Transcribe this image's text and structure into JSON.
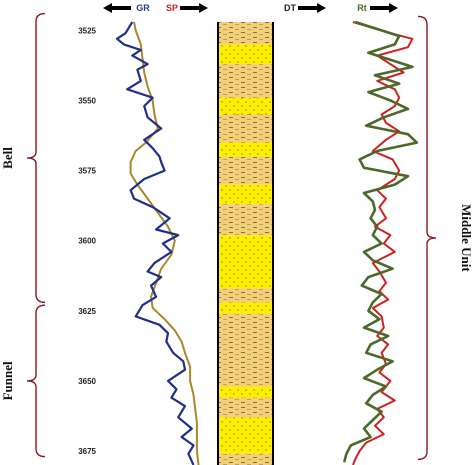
{
  "chart_data": {
    "type": "line",
    "y_axis": {
      "ticks": [
        3525,
        3550,
        3575,
        3600,
        3625,
        3650,
        3675
      ],
      "range": [
        3522,
        3680
      ],
      "reversed": true
    },
    "track_headers": [
      {
        "label": "GR",
        "color": "#2b3a8f",
        "arrow": "left"
      },
      {
        "label": "SP",
        "color": "#cc2222",
        "arrow": "right"
      },
      {
        "label": "DT",
        "color": "#222222",
        "arrow": "right"
      },
      {
        "label": "Rt",
        "color": "#4a6a2a",
        "arrow": "right"
      }
    ],
    "left_annotations": [
      {
        "label": "Bell",
        "range": [
          3519,
          3622
        ]
      },
      {
        "label": "Funnel",
        "range": [
          3623,
          3677
        ]
      }
    ],
    "right_annotations": [
      {
        "label": "Middle Unit",
        "range": [
          3520,
          3678
        ]
      }
    ],
    "lithology": [
      {
        "top": 3522,
        "base": 3530,
        "type": "shale"
      },
      {
        "top": 3530,
        "base": 3537,
        "type": "sand"
      },
      {
        "top": 3537,
        "base": 3549,
        "type": "shale"
      },
      {
        "top": 3549,
        "base": 3555,
        "type": "sand"
      },
      {
        "top": 3555,
        "base": 3565,
        "type": "shale"
      },
      {
        "top": 3565,
        "base": 3570,
        "type": "sand"
      },
      {
        "top": 3570,
        "base": 3580,
        "type": "shale"
      },
      {
        "top": 3580,
        "base": 3587,
        "type": "sand"
      },
      {
        "top": 3587,
        "base": 3598,
        "type": "shale"
      },
      {
        "top": 3598,
        "base": 3617,
        "type": "sand"
      },
      {
        "top": 3617,
        "base": 3622,
        "type": "shale"
      },
      {
        "top": 3622,
        "base": 3626,
        "type": "sand"
      },
      {
        "top": 3626,
        "base": 3652,
        "type": "shale"
      },
      {
        "top": 3652,
        "base": 3656,
        "type": "sand"
      },
      {
        "top": 3656,
        "base": 3663,
        "type": "shale"
      },
      {
        "top": 3663,
        "base": 3676,
        "type": "sand"
      },
      {
        "top": 3676,
        "base": 3680,
        "type": "shale"
      }
    ],
    "curve_scale": [
      0,
      100
    ],
    "series": [
      {
        "name": "GR",
        "color": "#1f2f8a",
        "points": [
          [
            3522,
            19
          ],
          [
            3526,
            15
          ],
          [
            3528,
            10
          ],
          [
            3530,
            14
          ],
          [
            3532,
            24
          ],
          [
            3534,
            19
          ],
          [
            3537,
            28
          ],
          [
            3539,
            22
          ],
          [
            3543,
            24
          ],
          [
            3546,
            16
          ],
          [
            3549,
            31
          ],
          [
            3552,
            26
          ],
          [
            3556,
            28
          ],
          [
            3560,
            36
          ],
          [
            3564,
            26
          ],
          [
            3567,
            31
          ],
          [
            3570,
            35
          ],
          [
            3572,
            36
          ],
          [
            3575,
            38
          ],
          [
            3578,
            26
          ],
          [
            3582,
            18
          ],
          [
            3585,
            20
          ],
          [
            3588,
            31
          ],
          [
            3592,
            41
          ],
          [
            3596,
            33
          ],
          [
            3598,
            46
          ],
          [
            3601,
            37
          ],
          [
            3604,
            42
          ],
          [
            3608,
            32
          ],
          [
            3611,
            28
          ],
          [
            3613,
            36
          ],
          [
            3616,
            30
          ],
          [
            3620,
            33
          ],
          [
            3623,
            25
          ],
          [
            3627,
            21
          ],
          [
            3630,
            35
          ],
          [
            3633,
            40
          ],
          [
            3636,
            39
          ],
          [
            3640,
            43
          ],
          [
            3643,
            49
          ],
          [
            3646,
            50
          ],
          [
            3650,
            40
          ],
          [
            3653,
            45
          ],
          [
            3656,
            42
          ],
          [
            3659,
            50
          ],
          [
            3663,
            46
          ],
          [
            3667,
            54
          ],
          [
            3670,
            48
          ],
          [
            3673,
            55
          ],
          [
            3676,
            52
          ],
          [
            3680,
            55
          ]
        ]
      },
      {
        "name": "SP",
        "color": "#a8882a",
        "points": [
          [
            3522,
            20
          ],
          [
            3525,
            21
          ],
          [
            3530,
            24
          ],
          [
            3535,
            25
          ],
          [
            3540,
            26
          ],
          [
            3545,
            28
          ],
          [
            3550,
            31
          ],
          [
            3555,
            32
          ],
          [
            3560,
            34
          ],
          [
            3565,
            27
          ],
          [
            3568,
            21
          ],
          [
            3572,
            18
          ],
          [
            3576,
            18
          ],
          [
            3580,
            22
          ],
          [
            3585,
            28
          ],
          [
            3590,
            34
          ],
          [
            3595,
            40
          ],
          [
            3600,
            44
          ],
          [
            3605,
            42
          ],
          [
            3610,
            36
          ],
          [
            3615,
            33
          ],
          [
            3620,
            30
          ],
          [
            3624,
            31
          ],
          [
            3628,
            38
          ],
          [
            3632,
            44
          ],
          [
            3636,
            48
          ],
          [
            3640,
            50
          ],
          [
            3645,
            53
          ],
          [
            3650,
            53
          ],
          [
            3655,
            55
          ],
          [
            3660,
            56
          ],
          [
            3665,
            57
          ],
          [
            3670,
            57
          ],
          [
            3675,
            57
          ],
          [
            3680,
            58
          ]
        ]
      },
      {
        "name": "DT",
        "color": "#cc2222",
        "points": [
          [
            3522,
            65
          ],
          [
            3526,
            82
          ],
          [
            3528,
            92
          ],
          [
            3531,
            90
          ],
          [
            3534,
            76
          ],
          [
            3537,
            82
          ],
          [
            3540,
            88
          ],
          [
            3543,
            76
          ],
          [
            3546,
            84
          ],
          [
            3549,
            86
          ],
          [
            3552,
            84
          ],
          [
            3555,
            78
          ],
          [
            3558,
            80
          ],
          [
            3561,
            86
          ],
          [
            3564,
            80
          ],
          [
            3568,
            74
          ],
          [
            3571,
            83
          ],
          [
            3575,
            86
          ],
          [
            3578,
            84
          ],
          [
            3582,
            76
          ],
          [
            3585,
            80
          ],
          [
            3588,
            77
          ],
          [
            3592,
            80
          ],
          [
            3595,
            75
          ],
          [
            3598,
            82
          ],
          [
            3601,
            79
          ],
          [
            3604,
            84
          ],
          [
            3608,
            74
          ],
          [
            3611,
            77
          ],
          [
            3615,
            80
          ],
          [
            3618,
            77
          ],
          [
            3621,
            81
          ],
          [
            3624,
            74
          ],
          [
            3627,
            78
          ],
          [
            3631,
            79
          ],
          [
            3634,
            76
          ],
          [
            3637,
            81
          ],
          [
            3640,
            78
          ],
          [
            3644,
            80
          ],
          [
            3647,
            77
          ],
          [
            3650,
            82
          ],
          [
            3654,
            78
          ],
          [
            3657,
            84
          ],
          [
            3660,
            76
          ],
          [
            3663,
            79
          ],
          [
            3666,
            75
          ],
          [
            3669,
            79
          ],
          [
            3672,
            71
          ],
          [
            3675,
            68
          ],
          [
            3678,
            66
          ],
          [
            3680,
            65
          ]
        ]
      },
      {
        "name": "Rt",
        "color": "#4b6a2a",
        "points": [
          [
            3522,
            66
          ],
          [
            3525,
            78
          ],
          [
            3527,
            86
          ],
          [
            3530,
            84
          ],
          [
            3533,
            72
          ],
          [
            3535,
            80
          ],
          [
            3538,
            92
          ],
          [
            3541,
            75
          ],
          [
            3544,
            86
          ],
          [
            3547,
            72
          ],
          [
            3550,
            82
          ],
          [
            3553,
            90
          ],
          [
            3556,
            79
          ],
          [
            3559,
            71
          ],
          [
            3562,
            90
          ],
          [
            3565,
            94
          ],
          [
            3568,
            76
          ],
          [
            3571,
            68
          ],
          [
            3574,
            70
          ],
          [
            3577,
            90
          ],
          [
            3580,
            84
          ],
          [
            3583,
            70
          ],
          [
            3586,
            74
          ],
          [
            3589,
            75
          ],
          [
            3592,
            73
          ],
          [
            3595,
            76
          ],
          [
            3598,
            74
          ],
          [
            3601,
            78
          ],
          [
            3604,
            70
          ],
          [
            3607,
            74
          ],
          [
            3610,
            83
          ],
          [
            3613,
            72
          ],
          [
            3616,
            69
          ],
          [
            3619,
            78
          ],
          [
            3622,
            74
          ],
          [
            3625,
            72
          ],
          [
            3628,
            77
          ],
          [
            3631,
            70
          ],
          [
            3634,
            81
          ],
          [
            3637,
            73
          ],
          [
            3640,
            71
          ],
          [
            3643,
            83
          ],
          [
            3646,
            76
          ],
          [
            3649,
            70
          ],
          [
            3652,
            80
          ],
          [
            3655,
            74
          ],
          [
            3658,
            71
          ],
          [
            3661,
            78
          ],
          [
            3664,
            74
          ],
          [
            3667,
            70
          ],
          [
            3670,
            73
          ],
          [
            3673,
            64
          ],
          [
            3676,
            62
          ],
          [
            3679,
            61
          ]
        ]
      }
    ]
  }
}
